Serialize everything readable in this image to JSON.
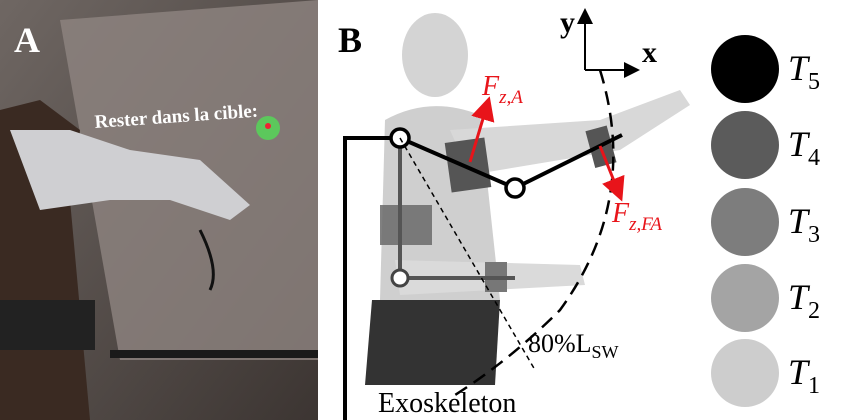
{
  "panel_a": {
    "label": "A",
    "screen_text": "Rester dans la cible:"
  },
  "panel_b": {
    "label": "B",
    "axes": {
      "y": "y",
      "x": "x"
    },
    "forces": [
      {
        "base": "F",
        "sub": "z,A"
      },
      {
        "base": "F",
        "sub": "z,FA"
      }
    ],
    "reach": {
      "main": "80%L",
      "sub": "SW"
    },
    "device": "Exoskeleton",
    "legend": [
      {
        "base": "T",
        "sub": "5"
      },
      {
        "base": "T",
        "sub": "4"
      },
      {
        "base": "T",
        "sub": "3"
      },
      {
        "base": "T",
        "sub": "2"
      },
      {
        "base": "T",
        "sub": "1"
      }
    ]
  }
}
